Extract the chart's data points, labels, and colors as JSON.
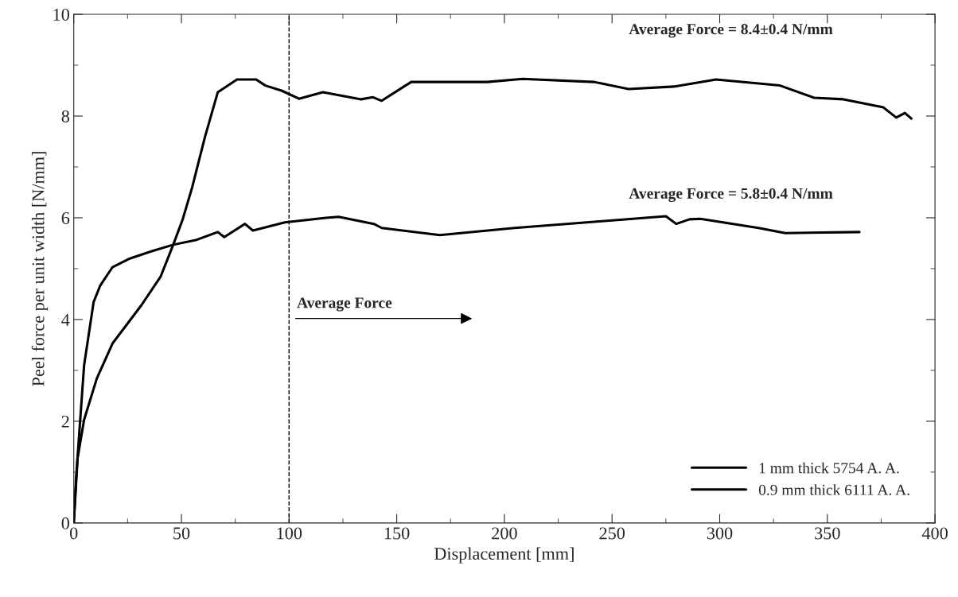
{
  "chart_data": {
    "type": "line",
    "xlabel": "Displacement [mm]",
    "ylabel": "Peel force per unit width [N/mm]",
    "xlim": [
      0,
      400
    ],
    "ylim": [
      0,
      10
    ],
    "xticks": [
      0,
      50,
      100,
      150,
      200,
      250,
      300,
      350,
      400
    ],
    "yticks": [
      0,
      2,
      4,
      6,
      8,
      10
    ],
    "grid": false,
    "legend": "bottom right",
    "line_style": "solid",
    "marker": "none",
    "series": [
      {
        "name": "1 mm thick 5754 A. A.",
        "color": "#000000",
        "x": [
          0,
          1.8,
          4.8,
          10.7,
          18,
          31.4,
          40.3,
          46.2,
          50.6,
          55,
          61,
          66.9,
          75.8,
          84.7,
          89,
          96.5,
          104.6,
          115.7,
          133.5,
          139,
          143,
          156.7,
          192,
          208.5,
          241.8,
          257.7,
          278.7,
          298.3,
          328,
          343.8,
          357.5,
          376,
          382,
          386,
          389
        ],
        "values": [
          0,
          1.28,
          2.03,
          2.84,
          3.53,
          4.28,
          4.84,
          5.47,
          5.97,
          6.6,
          7.6,
          8.47,
          8.72,
          8.72,
          8.6,
          8.5,
          8.34,
          8.47,
          8.33,
          8.37,
          8.3,
          8.67,
          8.67,
          8.73,
          8.67,
          8.53,
          8.58,
          8.72,
          8.6,
          8.36,
          8.33,
          8.17,
          7.97,
          8.06,
          7.95
        ]
      },
      {
        "name": "0.9 mm thick 6111 A. A.",
        "color": "#000000",
        "x": [
          0,
          1.1,
          4.8,
          9.2,
          12.2,
          18,
          25.5,
          35.9,
          46.2,
          56.6,
          66.9,
          69.9,
          79.5,
          83.2,
          98,
          117.2,
          123,
          139.4,
          143,
          170,
          204.8,
          247.7,
          275,
          279.8,
          286,
          291,
          318,
          330.5,
          364.9
        ],
        "values": [
          0,
          0.9,
          3.1,
          4.34,
          4.66,
          5.03,
          5.19,
          5.34,
          5.47,
          5.56,
          5.72,
          5.62,
          5.88,
          5.75,
          5.91,
          6.0,
          6.02,
          5.88,
          5.8,
          5.66,
          5.8,
          5.94,
          6.03,
          5.88,
          5.97,
          5.98,
          5.8,
          5.7,
          5.72
        ]
      }
    ],
    "ref_lines": [
      {
        "axis": "x",
        "value": 100,
        "color": "#000000",
        "line_style": "dashed"
      }
    ],
    "annotations": [
      "Average Force = 8.4±0.4 N/mm",
      "Average Force = 5.8±0.4 N/mm",
      "Average Force"
    ]
  }
}
